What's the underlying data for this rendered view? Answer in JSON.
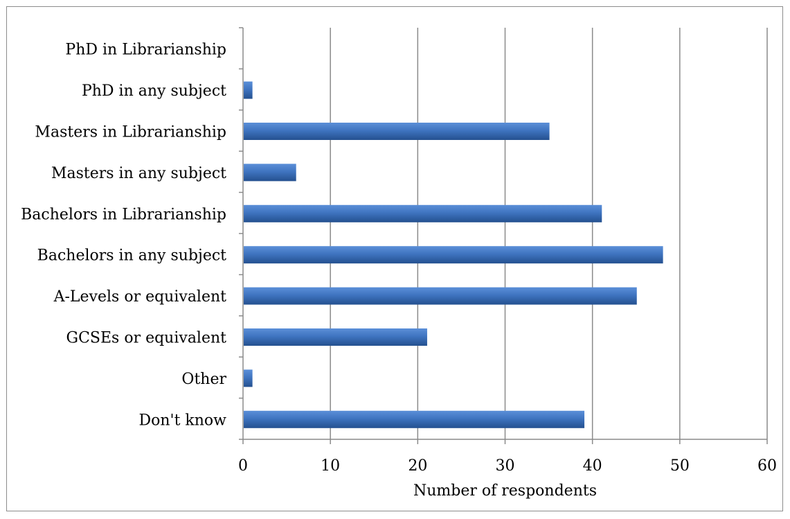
{
  "chart_data": {
    "type": "bar",
    "orientation": "horizontal",
    "categories": [
      "PhD in Librarianship",
      "PhD in any subject",
      "Masters in Librarianship",
      "Masters in any subject",
      "Bachelors in Librarianship",
      "Bachelors in any subject",
      "A-Levels or equivalent",
      "GCSEs or equivalent",
      "Other",
      "Don't know"
    ],
    "values": [
      0,
      1,
      35,
      6,
      41,
      48,
      45,
      21,
      1,
      39
    ],
    "xlabel": "Number of respondents",
    "ylabel": "",
    "xlim": [
      0,
      60
    ],
    "xticks": [
      0,
      10,
      20,
      30,
      40,
      50,
      60
    ],
    "grid": "vertical",
    "legend": "none",
    "bar_color": "#3f74c0",
    "bar_color_dark": "#24508f",
    "bar_color_light": "#5b8fd8"
  }
}
